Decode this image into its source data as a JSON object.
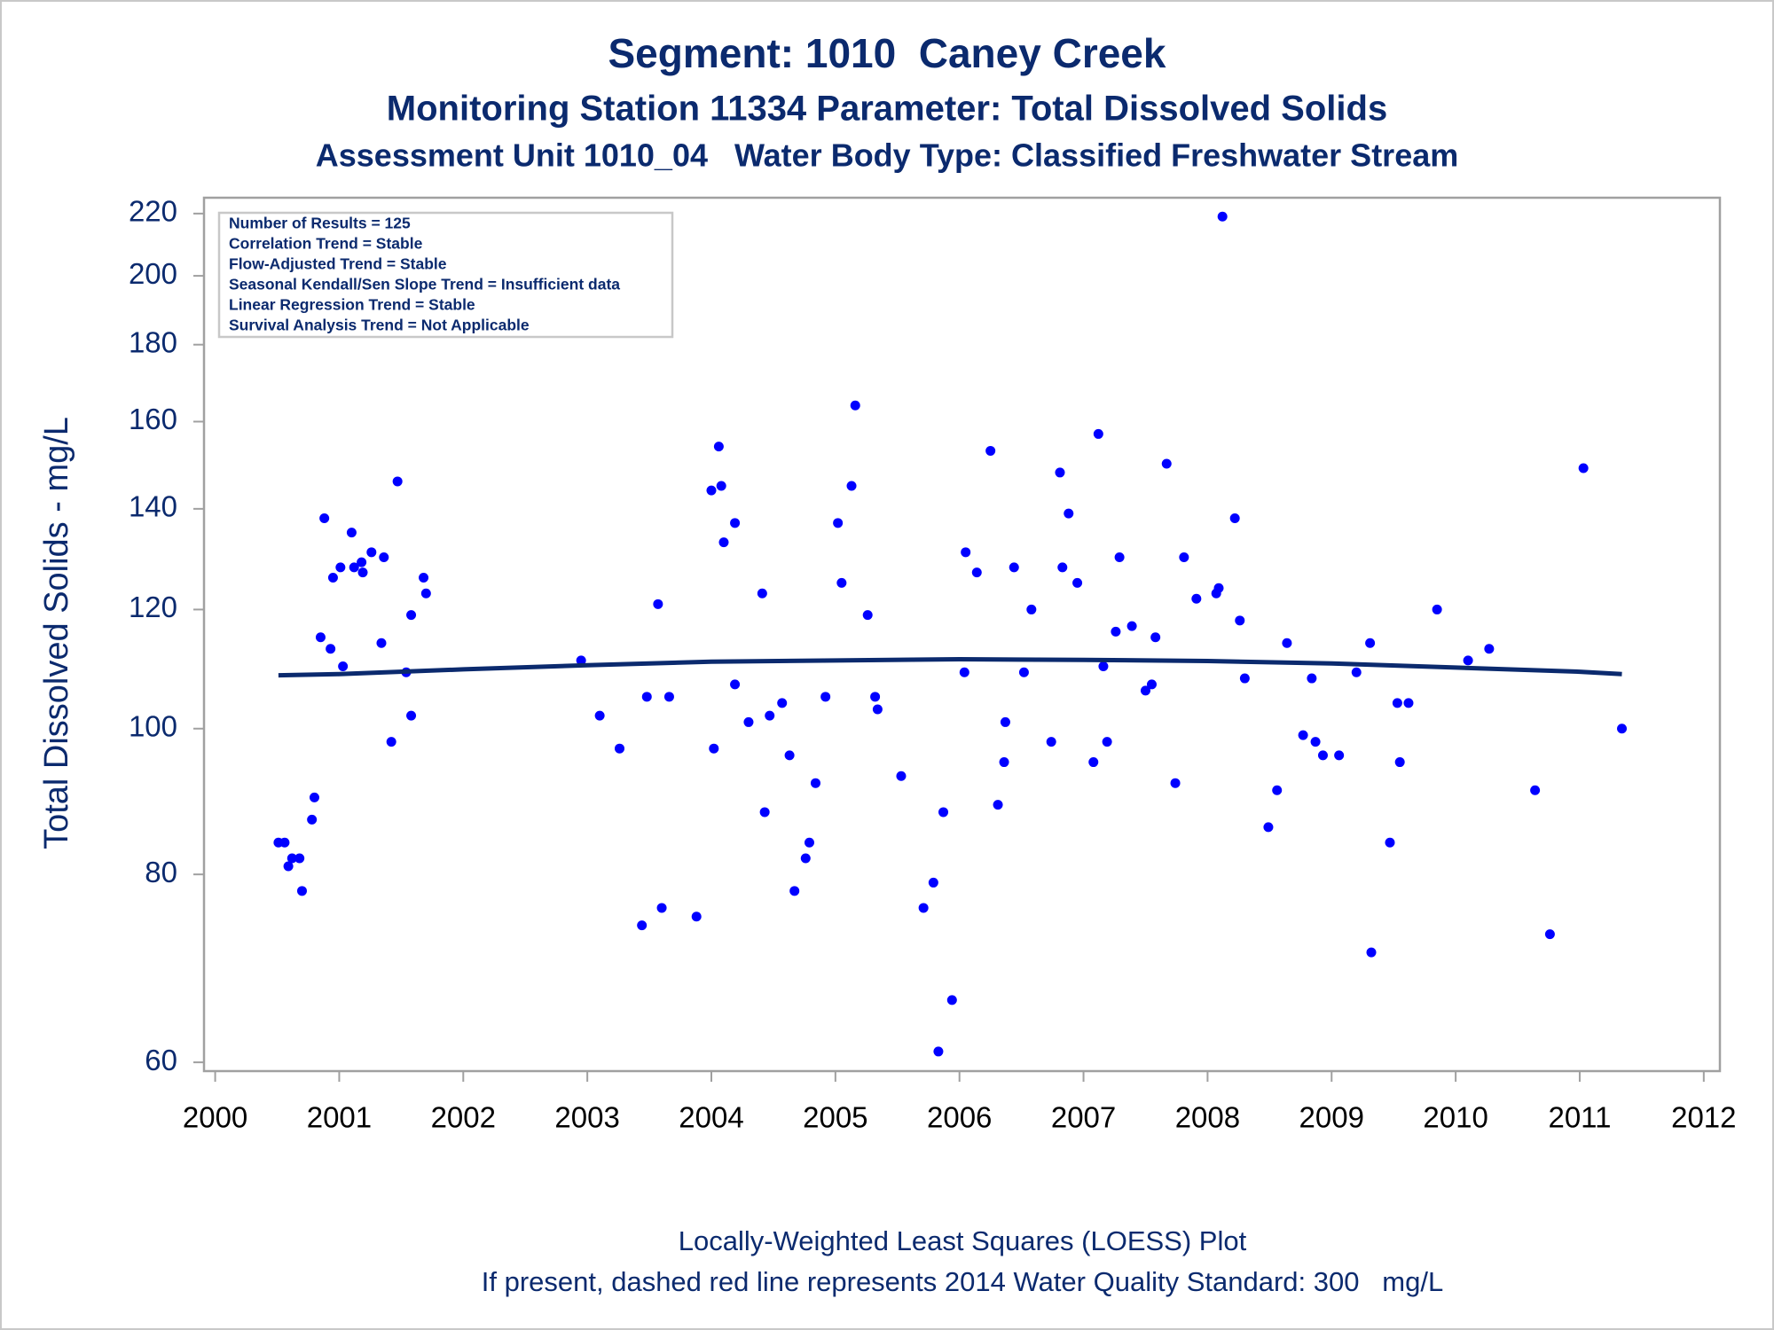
{
  "chart_data": {
    "type": "scatter",
    "title": "Segment: 1010  Caney Creek",
    "subtitles": [
      "Monitoring Station 11334 Parameter: Total Dissolved Solids",
      "Assessment Unit 1010_04   Water Body Type: Classified Freshwater Stream"
    ],
    "y_label": "Total Dissolved Solids - mg/L",
    "annotations": [
      "Number of Results = 125",
      "Correlation Trend = Stable",
      "Flow-Adjusted Trend = Stable",
      "Seasonal Kendall/Sen Slope Trend = Insufficient data",
      "Linear Regression Trend = Stable",
      "Survival Analysis Trend = Not Applicable"
    ],
    "footnotes": [
      "Locally-Weighted Least Squares (LOESS) Plot",
      "If present, dashed red line represents 2014 Water Quality Standard: 300   mg/L"
    ],
    "xlim": [
      1999.91,
      2012.13
    ],
    "xticks": [
      2000,
      2001,
      2002,
      2003,
      2004,
      2005,
      2006,
      2007,
      2008,
      2009,
      2010,
      2011,
      2012
    ],
    "ylim": [
      59.2,
      225.4
    ],
    "yticks": [
      60,
      80,
      100,
      120,
      140,
      160,
      180,
      200,
      220
    ],
    "y_scale": "log",
    "series": [
      {
        "type": "scatter",
        "color": "#0000ff",
        "x": [
          2000.51,
          2000.56,
          2000.59,
          2000.62,
          2000.68,
          2000.7,
          2000.78,
          2000.8,
          2000.85,
          2000.88,
          2000.93,
          2000.95,
          2001.01,
          2001.03,
          2001.1,
          2001.12,
          2001.18,
          2001.19,
          2001.26,
          2001.34,
          2001.36,
          2001.42,
          2001.47,
          2001.54,
          2001.58,
          2001.58,
          2001.68,
          2001.7,
          2002.95,
          2003.1,
          2003.26,
          2003.44,
          2003.48,
          2003.57,
          2003.6,
          2003.66,
          2003.88,
          2004.0,
          2004.02,
          2004.06,
          2004.08,
          2004.1,
          2004.19,
          2004.19,
          2004.3,
          2004.41,
          2004.43,
          2004.47,
          2004.57,
          2004.63,
          2004.67,
          2004.76,
          2004.79,
          2004.84,
          2004.92,
          2005.02,
          2005.05,
          2005.13,
          2005.16,
          2005.26,
          2005.32,
          2005.34,
          2005.53,
          2005.71,
          2005.79,
          2005.83,
          2005.87,
          2005.94,
          2006.04,
          2006.05,
          2006.14,
          2006.25,
          2006.31,
          2006.36,
          2006.37,
          2006.44,
          2006.52,
          2006.58,
          2006.74,
          2006.81,
          2006.83,
          2006.88,
          2006.95,
          2007.08,
          2007.12,
          2007.16,
          2007.19,
          2007.26,
          2007.29,
          2007.39,
          2007.5,
          2007.55,
          2007.58,
          2007.67,
          2007.74,
          2007.81,
          2007.91,
          2008.07,
          2008.09,
          2008.12,
          2008.22,
          2008.26,
          2008.3,
          2008.49,
          2008.56,
          2008.64,
          2008.77,
          2008.84,
          2008.87,
          2008.93,
          2009.06,
          2009.2,
          2009.31,
          2009.32,
          2009.47,
          2009.53,
          2009.55,
          2009.62,
          2009.85,
          2010.1,
          2010.27,
          2010.64,
          2010.76,
          2011.03,
          2011.34
        ],
        "values": [
          84,
          84,
          81,
          82,
          82,
          78,
          87,
          90,
          115,
          138,
          113,
          126,
          128,
          110,
          135,
          128,
          129,
          127,
          131,
          114,
          130,
          98,
          146,
          109,
          119,
          102,
          126,
          123,
          111,
          102,
          97,
          74,
          105,
          121,
          76,
          105,
          75,
          144,
          97,
          154,
          145,
          133,
          137,
          107,
          101,
          123,
          88,
          102,
          104,
          96,
          78,
          82,
          84,
          92,
          105,
          137,
          125,
          145,
          164,
          119,
          105,
          103,
          93,
          76,
          79,
          61,
          88,
          66,
          109,
          131,
          127,
          153,
          89,
          95,
          101,
          128,
          109,
          120,
          98,
          148,
          128,
          139,
          125,
          95,
          157,
          110,
          98,
          116,
          130,
          117,
          106,
          107,
          115,
          150,
          92,
          130,
          122,
          123,
          124,
          219,
          138,
          118,
          108,
          86,
          91,
          114,
          99,
          108,
          98,
          96,
          96,
          109,
          114,
          71,
          84,
          104,
          95,
          104,
          120,
          111,
          113,
          91,
          73,
          149,
          100
        ]
      },
      {
        "type": "line",
        "color": "#0b2a6e",
        "x": [
          2000.51,
          2001,
          2002,
          2003,
          2004,
          2005,
          2006,
          2007,
          2008,
          2009,
          2010,
          2011,
          2011.34
        ],
        "values": [
          108.5,
          108.7,
          109.5,
          110.2,
          110.8,
          111.0,
          111.2,
          111.1,
          110.9,
          110.5,
          109.8,
          109.1,
          108.7
        ]
      }
    ]
  }
}
